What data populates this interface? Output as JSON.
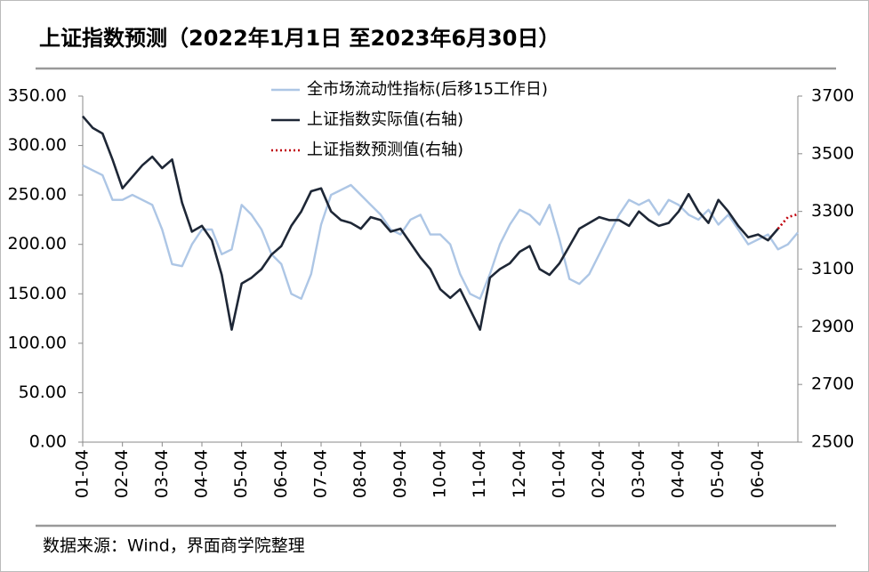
{
  "chart_data": {
    "type": "line",
    "title": "上证指数预测（2022年1月1日 至2023年6月30日）",
    "source": "数据来源：Wind，界面商学院整理",
    "categories": [
      "01-04",
      null,
      null,
      null,
      "02-04",
      null,
      null,
      null,
      "03-04",
      null,
      null,
      null,
      "04-04",
      null,
      null,
      null,
      "05-04",
      null,
      null,
      null,
      "06-04",
      null,
      null,
      null,
      "07-04",
      null,
      null,
      null,
      "08-04",
      null,
      null,
      null,
      "09-04",
      null,
      null,
      null,
      "10-04",
      null,
      null,
      null,
      "11-04",
      null,
      null,
      null,
      "12-04",
      null,
      null,
      null,
      "01-04",
      null,
      null,
      null,
      "02-04",
      null,
      null,
      null,
      "03-04",
      null,
      null,
      null,
      "04-04",
      null,
      null,
      null,
      "05-04",
      null,
      null,
      null,
      "06-04",
      null,
      null,
      null,
      null
    ],
    "series": [
      {
        "name": "全市场流动性指标(后移15工作日)",
        "color": "#adc6e5",
        "axis": "y",
        "values": [
          280,
          275,
          270,
          245,
          245,
          250,
          245,
          240,
          215,
          180,
          178,
          200,
          215,
          215,
          190,
          195,
          240,
          230,
          215,
          190,
          180,
          150,
          145,
          170,
          220,
          250,
          255,
          260,
          250,
          240,
          230,
          215,
          210,
          225,
          230,
          210,
          210,
          200,
          170,
          150,
          145,
          170,
          200,
          220,
          235,
          230,
          220,
          240,
          205,
          165,
          160,
          170,
          190,
          210,
          230,
          245,
          240,
          245,
          230,
          245,
          240,
          230,
          225,
          235,
          220,
          230,
          215,
          200,
          205,
          210,
          195,
          200,
          212
        ]
      },
      {
        "name": "上证指数实际值(右轴)",
        "color": "#1e2736",
        "axis": "y2",
        "values": [
          3630,
          3590,
          3570,
          3480,
          3380,
          3420,
          3460,
          3490,
          3450,
          3480,
          3330,
          3230,
          3250,
          3200,
          3080,
          2890,
          3050,
          3070,
          3100,
          3150,
          3180,
          3250,
          3300,
          3370,
          3380,
          3300,
          3270,
          3260,
          3240,
          3280,
          3270,
          3230,
          3240,
          3190,
          3140,
          3100,
          3030,
          3000,
          3030,
          2960,
          2890,
          3070,
          3100,
          3120,
          3160,
          3180,
          3100,
          3080,
          3120,
          3180,
          3240,
          3260,
          3280,
          3270,
          3270,
          3250,
          3300,
          3270,
          3250,
          3260,
          3300,
          3360,
          3300,
          3260,
          3340,
          3300,
          3250,
          3210,
          3220,
          3200,
          3240,
          null,
          null
        ]
      },
      {
        "name": "上证指数预测值(右轴)",
        "color": "#c0000b",
        "axis": "y2",
        "style": "dotted",
        "values": [
          null,
          null,
          null,
          null,
          null,
          null,
          null,
          null,
          null,
          null,
          null,
          null,
          null,
          null,
          null,
          null,
          null,
          null,
          null,
          null,
          null,
          null,
          null,
          null,
          null,
          null,
          null,
          null,
          null,
          null,
          null,
          null,
          null,
          null,
          null,
          null,
          null,
          null,
          null,
          null,
          null,
          null,
          null,
          null,
          null,
          null,
          null,
          null,
          null,
          null,
          null,
          null,
          null,
          null,
          null,
          null,
          null,
          null,
          null,
          null,
          null,
          null,
          null,
          null,
          null,
          null,
          null,
          null,
          null,
          null,
          3240,
          3280,
          3290
        ]
      }
    ],
    "ylim": [
      0,
      350
    ],
    "yticks": [
      {
        "value": 0,
        "label": "0.00"
      },
      {
        "value": 50,
        "label": "50.00"
      },
      {
        "value": 100,
        "label": "100.00"
      },
      {
        "value": 150,
        "label": "150.00"
      },
      {
        "value": 200,
        "label": "200.00"
      },
      {
        "value": 250,
        "label": "250.00"
      },
      {
        "value": 300,
        "label": "300.00"
      },
      {
        "value": 350,
        "label": "350.00"
      }
    ],
    "y2lim": [
      2500,
      3700
    ],
    "y2ticks": [
      2500,
      2700,
      2900,
      3100,
      3300,
      3500,
      3700
    ],
    "legend": "top"
  }
}
